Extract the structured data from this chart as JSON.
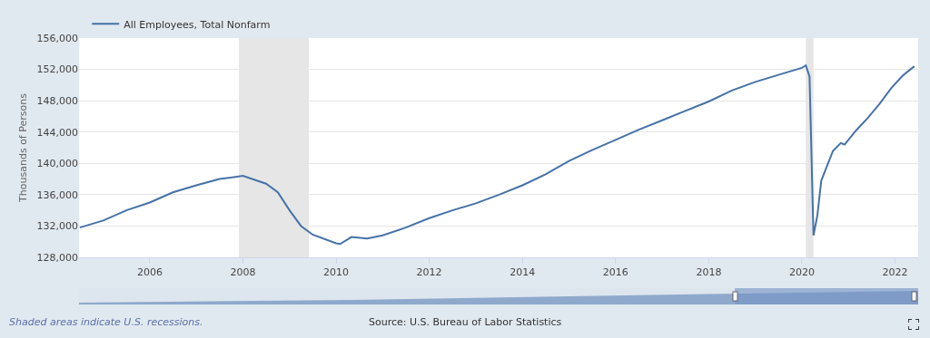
{
  "chart_data": {
    "type": "line",
    "ylabel": "Thousands of Persons",
    "x": [
      "2004-07",
      "2005-01",
      "2005-07",
      "2006-01",
      "2006-07",
      "2007-01",
      "2007-07",
      "2008-01",
      "2008-07",
      "2008-10",
      "2009-01",
      "2009-04",
      "2009-07",
      "2010-01",
      "2010-02",
      "2010-05",
      "2010-09",
      "2011-01",
      "2011-07",
      "2012-01",
      "2012-07",
      "2013-01",
      "2013-07",
      "2014-01",
      "2014-07",
      "2015-01",
      "2015-07",
      "2016-01",
      "2016-07",
      "2017-01",
      "2017-07",
      "2018-01",
      "2018-07",
      "2019-01",
      "2019-07",
      "2020-01",
      "2020-02",
      "2020-03",
      "2020-04",
      "2020-05",
      "2020-06",
      "2020-09",
      "2020-11",
      "2020-12",
      "2021-03",
      "2021-06",
      "2021-09",
      "2021-12",
      "2022-03",
      "2022-06"
    ],
    "series": [
      {
        "name": "All Employees, Total Nonfarm",
        "color": "#4572a7",
        "values": [
          131800,
          132700,
          134000,
          135000,
          136300,
          137200,
          138000,
          138400,
          137400,
          136300,
          134000,
          132000,
          130900,
          129800,
          129700,
          130600,
          130400,
          130800,
          131800,
          133000,
          134000,
          134900,
          136000,
          137200,
          138600,
          140300,
          141700,
          143000,
          144300,
          145500,
          146700,
          147900,
          149300,
          150400,
          151300,
          152200,
          152500,
          151100,
          130800,
          133300,
          137800,
          141600,
          142600,
          142400,
          144200,
          145800,
          147600,
          149600,
          151200,
          152400
        ]
      }
    ],
    "xlim": [
      "2004-06-25",
      "2022-07-01"
    ],
    "xticks": [
      {
        "value": "2006-01-01",
        "label": "2006"
      },
      {
        "value": "2008-01-01",
        "label": "2008"
      },
      {
        "value": "2010-01-01",
        "label": "2010"
      },
      {
        "value": "2012-01-01",
        "label": "2012"
      },
      {
        "value": "2014-01-01",
        "label": "2014"
      },
      {
        "value": "2016-01-01",
        "label": "2016"
      },
      {
        "value": "2018-01-01",
        "label": "2018"
      },
      {
        "value": "2020-01-01",
        "label": "2020"
      },
      {
        "value": "2022-01-01",
        "label": "2022"
      }
    ],
    "ylim": [
      128000,
      156000
    ],
    "yticks": [
      {
        "value": 128000,
        "label": "128,000"
      },
      {
        "value": 132000,
        "label": "132,000"
      },
      {
        "value": 136000,
        "label": "136,000"
      },
      {
        "value": 140000,
        "label": "140,000"
      },
      {
        "value": 144000,
        "label": "144,000"
      },
      {
        "value": 148000,
        "label": "148,000"
      },
      {
        "value": 152000,
        "label": "152,000"
      },
      {
        "value": 156000,
        "label": "156,000"
      }
    ],
    "bands": [
      {
        "axis": "x",
        "from": "2007-12-01",
        "to": "2009-06-01",
        "color": "#e6e6e6"
      },
      {
        "axis": "x",
        "from": "2020-02-01",
        "to": "2020-04-01",
        "color": "#e6e6e6"
      }
    ],
    "grid": "y",
    "legend": "top left",
    "marker": "none",
    "line_style": "solid",
    "annotations": [
      "Shaded areas indicate U.S. recessions.",
      "Source: U.S. Bureau of Labor Statistics"
    ]
  }
}
